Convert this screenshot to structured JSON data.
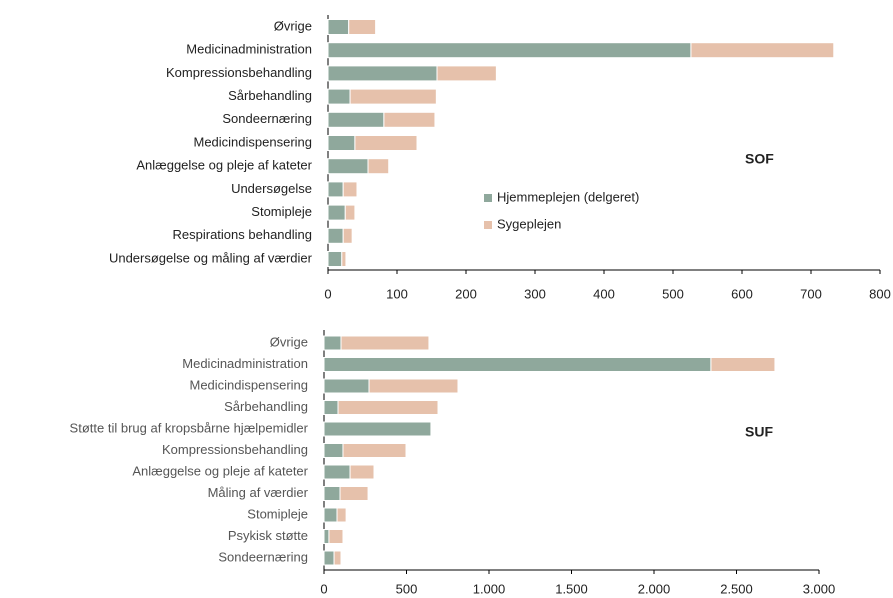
{
  "chart_data": [
    {
      "type": "bar",
      "orientation": "horizontal",
      "stacked": true,
      "annotation": "SOF",
      "legend": "center",
      "categories": [
        "Øvrige",
        "Medicinadministration",
        "Kompressionsbehandling",
        "Sårbehandling",
        "Sondeernæring",
        "Medicindispensering",
        "Anlæggelse og pleje af kateter",
        "Undersøgelse",
        "Stomipleje",
        "Respirations behandling",
        "Undersøgelse og måling af værdier"
      ],
      "series": [
        {
          "name": "Hjemmeplejen (delgeret)",
          "color": "#8fa89c",
          "values": [
            30,
            526,
            158,
            32,
            81,
            39,
            58,
            22,
            25,
            22,
            20
          ]
        },
        {
          "name": "Sygeplejen",
          "color": "#e6c1ab",
          "values": [
            39,
            207,
            86,
            125,
            74,
            90,
            30,
            20,
            14,
            13,
            6
          ]
        }
      ],
      "xlim": [
        0,
        800
      ],
      "xticks": [
        0,
        100,
        200,
        300,
        400,
        500,
        600,
        700,
        800
      ]
    },
    {
      "type": "bar",
      "orientation": "horizontal",
      "stacked": true,
      "annotation": "SUF",
      "categories": [
        "Øvrige",
        "Medicinadministration",
        "Medicindispensering",
        "Sårbehandling",
        "Støtte til brug af kropsbårne hjælpemidler",
        "Kompressionsbehandling",
        "Anlæggelse og pleje af kateter",
        "Måling af værdier",
        "Stomipleje",
        "Psykisk støtte",
        "Sondeernæring"
      ],
      "series": [
        {
          "color": "#8fa89c",
          "values": [
            103,
            2345,
            273,
            85,
            648,
            115,
            158,
            97,
            79,
            30,
            61
          ]
        },
        {
          "color": "#e6c1ab",
          "values": [
            533,
            388,
            539,
            606,
            0,
            382,
            145,
            170,
            55,
            85,
            42
          ]
        }
      ],
      "xlim": [
        0,
        3000
      ],
      "xticks": [
        0,
        500,
        {
          "value": 1000,
          "label": "1.000"
        },
        {
          "value": 1500,
          "label": "1.500"
        },
        {
          "value": 2000,
          "label": "2.000"
        },
        {
          "value": 2500,
          "label": "2.500"
        },
        {
          "value": 3000,
          "label": "3.000"
        }
      ]
    }
  ]
}
